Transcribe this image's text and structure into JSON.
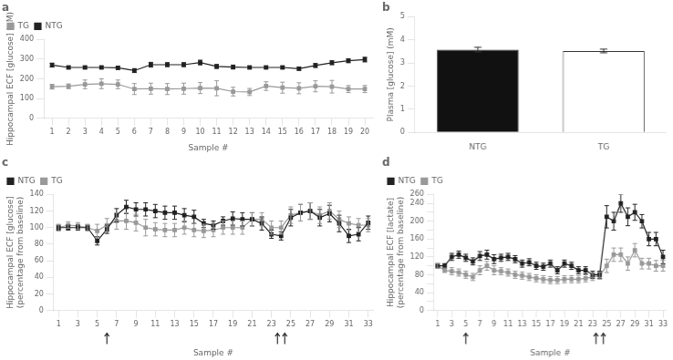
{
  "chart_data": [
    {
      "type": "line",
      "title": "a",
      "xlabel": "Sample #",
      "ylabel": "Hippocampal ECF [glucose] (µM)",
      "x": [
        1,
        2,
        3,
        4,
        5,
        6,
        7,
        8,
        9,
        10,
        11,
        12,
        13,
        14,
        15,
        16,
        17,
        18,
        19,
        20
      ],
      "xlim": [
        0.5,
        20.5
      ],
      "xticks": [
        1,
        2,
        3,
        4,
        5,
        6,
        7,
        8,
        9,
        10,
        11,
        12,
        13,
        14,
        15,
        16,
        17,
        18,
        19,
        20
      ],
      "ylim": [
        0,
        400
      ],
      "yticks": [
        0,
        100,
        200,
        300,
        400
      ],
      "grid": false,
      "legend": "upper left",
      "series": [
        {
          "name": "TG",
          "color": "#999999",
          "marker": "square",
          "line_style": "solid",
          "values": [
            160,
            162,
            172,
            175,
            172,
            148,
            150,
            148,
            150,
            153,
            152,
            135,
            133,
            163,
            155,
            152,
            162,
            160,
            148,
            148
          ],
          "errors": [
            12,
            12,
            22,
            25,
            22,
            28,
            28,
            28,
            28,
            28,
            38,
            22,
            18,
            22,
            28,
            28,
            28,
            32,
            18,
            18
          ]
        },
        {
          "name": "NTG",
          "color": "#222222",
          "marker": "square",
          "line_style": "solid",
          "values": [
            270,
            258,
            258,
            258,
            256,
            242,
            272,
            272,
            272,
            283,
            263,
            260,
            258,
            258,
            258,
            252,
            268,
            282,
            292,
            298
          ],
          "errors": [
            10,
            8,
            8,
            8,
            8,
            10,
            12,
            10,
            10,
            12,
            10,
            10,
            8,
            8,
            8,
            8,
            10,
            10,
            10,
            12
          ]
        }
      ]
    },
    {
      "type": "bar",
      "title": "b",
      "ylabel": "Plasma [glucose] (mM)",
      "categories": [
        "NTG",
        "TG"
      ],
      "values": [
        3.58,
        3.52
      ],
      "errors": [
        0.1,
        0.08
      ],
      "colors": [
        "#111111",
        "#ffffff"
      ],
      "ylim": [
        0,
        5
      ],
      "yticks": [
        0,
        1,
        2,
        3,
        4,
        5
      ],
      "grid": false
    },
    {
      "type": "line",
      "title": "c",
      "xlabel": "Sample #",
      "ylabel": "Hippocampal ECF [glucose]\n(percentage from baseline)",
      "x": [
        1,
        2,
        3,
        4,
        5,
        6,
        7,
        8,
        9,
        10,
        11,
        12,
        13,
        14,
        15,
        16,
        17,
        18,
        19,
        20,
        21,
        22,
        23,
        24,
        25,
        26,
        27,
        28,
        29,
        30,
        31,
        32,
        33
      ],
      "xlim": [
        0.5,
        33.5
      ],
      "xticks": [
        1,
        3,
        5,
        7,
        9,
        11,
        13,
        15,
        17,
        19,
        21,
        23,
        25,
        27,
        29,
        31,
        33
      ],
      "ylim": [
        0,
        140
      ],
      "yticks": [
        0,
        20,
        40,
        60,
        80,
        100,
        120,
        140
      ],
      "grid": false,
      "legend": "upper left",
      "arrows": [
        {
          "x": 6,
          "count": 1
        },
        {
          "x": 24,
          "count": 2
        }
      ],
      "series": [
        {
          "name": "NTG",
          "color": "#222222",
          "marker": "square",
          "line_style": "solid",
          "values": [
            100,
            100,
            100,
            100,
            84,
            98,
            115,
            125,
            122,
            122,
            120,
            118,
            118,
            115,
            113,
            105,
            103,
            108,
            111,
            110,
            110,
            105,
            92,
            90,
            112,
            118,
            120,
            112,
            117,
            105,
            90,
            92,
            106
          ],
          "errors": [
            3,
            3,
            3,
            3,
            5,
            5,
            8,
            8,
            8,
            8,
            8,
            8,
            8,
            8,
            8,
            5,
            5,
            5,
            8,
            8,
            8,
            8,
            5,
            5,
            10,
            10,
            10,
            10,
            10,
            10,
            8,
            8,
            8
          ]
        },
        {
          "name": "TG",
          "color": "#999999",
          "marker": "square",
          "line_style": "solid",
          "values": [
            100,
            103,
            102,
            100,
            96,
            103,
            108,
            108,
            106,
            100,
            98,
            97,
            97,
            100,
            97,
            96,
            97,
            100,
            100,
            100,
            110,
            110,
            100,
            100,
            115,
            118,
            120,
            115,
            120,
            110,
            105,
            103,
            103
          ],
          "errors": [
            4,
            4,
            4,
            4,
            8,
            8,
            10,
            10,
            10,
            10,
            8,
            8,
            8,
            8,
            8,
            8,
            8,
            8,
            8,
            8,
            8,
            8,
            8,
            8,
            10,
            10,
            10,
            10,
            10,
            10,
            8,
            8,
            8
          ]
        }
      ]
    },
    {
      "type": "line",
      "title": "d",
      "xlabel": "Sample #",
      "ylabel": "Hippocampal ECF [lactate]\n(percentage from baseline)",
      "x": [
        1,
        2,
        3,
        4,
        5,
        6,
        7,
        8,
        9,
        10,
        11,
        12,
        13,
        14,
        15,
        16,
        17,
        18,
        19,
        20,
        21,
        22,
        23,
        24,
        25,
        26,
        27,
        28,
        29,
        30,
        31,
        32,
        33
      ],
      "xlim": [
        0.5,
        33.5
      ],
      "xticks": [
        1,
        3,
        5,
        7,
        9,
        11,
        13,
        15,
        17,
        19,
        21,
        23,
        25,
        27,
        29,
        31,
        33
      ],
      "ylim": [
        0,
        260
      ],
      "yticks": [
        0,
        {
          "value": 20,
          "label": ""
        },
        40,
        {
          "value": 60,
          "label": ""
        },
        80,
        {
          "value": 100,
          "label": ""
        },
        120,
        {
          "value": 140,
          "label": ""
        },
        160,
        {
          "value": 180,
          "label": ""
        },
        200,
        {
          "value": 220,
          "label": ""
        },
        240,
        260
      ],
      "grid": false,
      "legend": "upper left",
      "arrows": [
        {
          "x": 5,
          "count": 1
        },
        {
          "x": 24,
          "count": 2
        }
      ],
      "series": [
        {
          "name": "NTG",
          "color": "#222222",
          "marker": "square",
          "line_style": "solid",
          "values": [
            100,
            100,
            120,
            125,
            118,
            110,
            122,
            125,
            115,
            118,
            120,
            115,
            105,
            108,
            100,
            98,
            105,
            90,
            105,
            100,
            90,
            90,
            80,
            80,
            210,
            200,
            240,
            210,
            220,
            200,
            160,
            160,
            120
          ],
          "errors": [
            5,
            5,
            8,
            8,
            8,
            8,
            10,
            10,
            10,
            8,
            8,
            8,
            8,
            8,
            8,
            8,
            8,
            8,
            8,
            8,
            8,
            8,
            8,
            8,
            25,
            20,
            20,
            20,
            18,
            15,
            15,
            15,
            15
          ]
        },
        {
          "name": "TG",
          "color": "#999999",
          "marker": "square",
          "line_style": "solid",
          "values": [
            100,
            90,
            88,
            85,
            80,
            75,
            90,
            100,
            90,
            88,
            85,
            80,
            78,
            75,
            72,
            70,
            68,
            68,
            70,
            70,
            70,
            72,
            75,
            78,
            100,
            125,
            125,
            105,
            135,
            105,
            105,
            100,
            100
          ],
          "errors": [
            5,
            5,
            8,
            8,
            8,
            8,
            10,
            10,
            10,
            8,
            8,
            8,
            8,
            8,
            8,
            8,
            8,
            8,
            8,
            8,
            8,
            8,
            8,
            8,
            15,
            15,
            15,
            15,
            15,
            12,
            12,
            12,
            12
          ]
        }
      ]
    }
  ]
}
